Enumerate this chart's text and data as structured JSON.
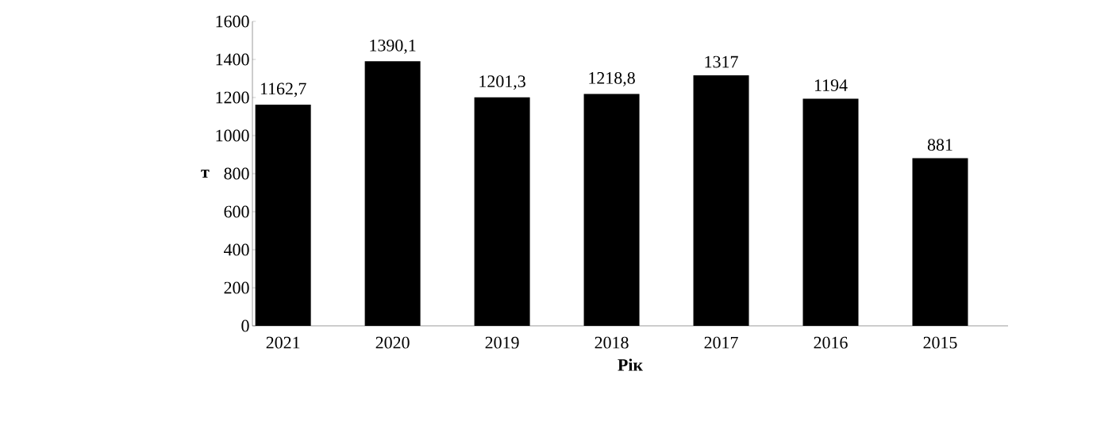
{
  "chart_data": {
    "type": "bar",
    "xlabel": "Рік",
    "ylabel": "т",
    "categories": [
      "2021",
      "2020",
      "2019",
      "2018",
      "2017",
      "2016",
      "2015"
    ],
    "values": [
      1162.7,
      1390.1,
      1201.3,
      1218.8,
      1317,
      1194,
      881
    ],
    "value_labels": [
      "1162,7",
      "1390,1",
      "1201,3",
      "1218,8",
      "1317",
      "1194",
      "881"
    ],
    "color": "#000000",
    "ylim": [
      0,
      1600
    ],
    "yticks": [
      0,
      200,
      400,
      600,
      800,
      1000,
      1200,
      1400,
      1600
    ]
  }
}
